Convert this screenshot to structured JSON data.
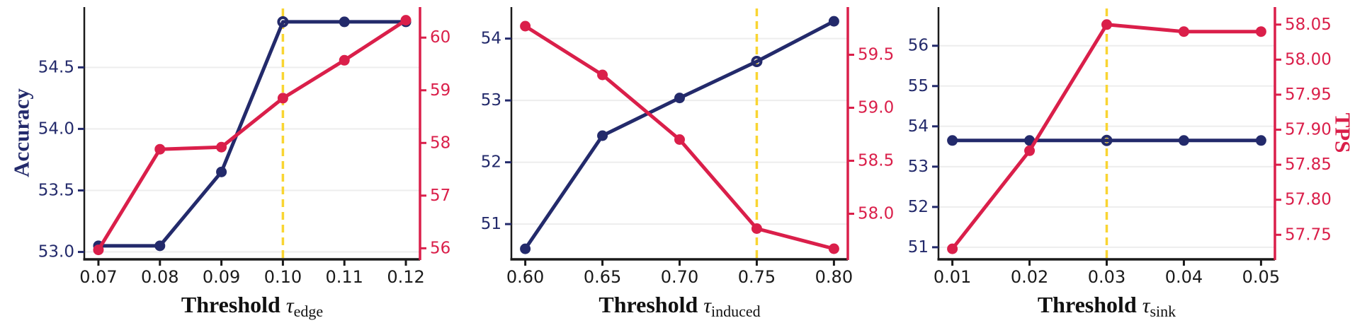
{
  "figure": {
    "background": "#ffffff",
    "description": "Three-panel threshold ablation line charts"
  },
  "colors": {
    "accuracy": "#232a6b",
    "tps": "#da1f4a",
    "highlight": "#f9d532",
    "grid": "#ededed",
    "spine_black": "#1a1a1a",
    "xtick_text": "#1a1a1a"
  },
  "labels": {
    "left_axis_label": "Accuracy",
    "right_axis_label": "TPS",
    "xlabel_word": "Threshold",
    "tau_symbol": "τ"
  },
  "chart_data": [
    {
      "type": "line",
      "xlabel": "Threshold τ_edge",
      "xlabel_word": "Threshold",
      "tau_symbol": "τ",
      "xlabel_subscript": "edge",
      "x": [
        0.07,
        0.08,
        0.09,
        0.1,
        0.11,
        0.12
      ],
      "x_tick_labels": [
        "0.07",
        "0.08",
        "0.09",
        "0.10",
        "0.11",
        "0.12"
      ],
      "xlim": [
        0.0677,
        0.1223
      ],
      "highlight_x": 0.1,
      "left_axis": {
        "label": "Accuracy",
        "ticks": [
          53.0,
          53.5,
          54.0,
          54.5
        ],
        "tick_labels": [
          "53.0",
          "53.5",
          "54.0",
          "54.5"
        ],
        "lim": [
          52.94,
          54.99
        ]
      },
      "right_axis": {
        "label": "",
        "ticks": [
          56,
          57,
          58,
          59,
          60
        ],
        "tick_labels": [
          "56",
          "57",
          "58",
          "59",
          "60"
        ],
        "lim": [
          55.79,
          60.58
        ]
      },
      "series": [
        {
          "name": "Accuracy",
          "axis": "left",
          "values": [
            53.05,
            53.05,
            53.65,
            54.87,
            54.87,
            54.87
          ]
        },
        {
          "name": "TPS",
          "axis": "right",
          "values": [
            55.97,
            57.88,
            57.92,
            58.85,
            59.57,
            60.33
          ]
        }
      ]
    },
    {
      "type": "line",
      "xlabel": "Threshold τ_induced",
      "xlabel_word": "Threshold",
      "tau_symbol": "τ",
      "xlabel_subscript": "induced",
      "x": [
        0.6,
        0.65,
        0.7,
        0.75,
        0.8
      ],
      "x_tick_labels": [
        "0.60",
        "0.65",
        "0.70",
        "0.75",
        "0.80"
      ],
      "xlim": [
        0.591,
        0.809
      ],
      "highlight_x": 0.75,
      "left_axis": {
        "label": "",
        "ticks": [
          51,
          52,
          53,
          54
        ],
        "tick_labels": [
          "51",
          "52",
          "53",
          "54"
        ],
        "lim": [
          50.43,
          54.51
        ]
      },
      "right_axis": {
        "label": "",
        "ticks": [
          58.0,
          58.5,
          59.0,
          59.5
        ],
        "tick_labels": [
          "58.0",
          "58.5",
          "59.0",
          "59.5"
        ],
        "lim": [
          57.57,
          59.95
        ]
      },
      "series": [
        {
          "name": "Accuracy",
          "axis": "left",
          "values": [
            50.6,
            52.43,
            53.04,
            53.63,
            54.28
          ]
        },
        {
          "name": "TPS",
          "axis": "right",
          "values": [
            59.77,
            59.31,
            58.7,
            57.86,
            57.67
          ]
        }
      ]
    },
    {
      "type": "line",
      "xlabel": "Threshold τ_sink",
      "xlabel_word": "Threshold",
      "tau_symbol": "τ",
      "xlabel_subscript": "sink",
      "x": [
        0.01,
        0.02,
        0.03,
        0.04,
        0.05
      ],
      "x_tick_labels": [
        "0.01",
        "0.02",
        "0.03",
        "0.04",
        "0.05"
      ],
      "xlim": [
        0.0082,
        0.0518
      ],
      "highlight_x": 0.03,
      "left_axis": {
        "label": "",
        "ticks": [
          51,
          52,
          53,
          54,
          55,
          56
        ],
        "tick_labels": [
          "51",
          "52",
          "53",
          "54",
          "55",
          "56"
        ],
        "lim": [
          50.7,
          56.96
        ]
      },
      "right_axis": {
        "label": "TPS",
        "ticks": [
          57.75,
          57.8,
          57.85,
          57.9,
          57.95,
          58.0,
          58.05
        ],
        "tick_labels": [
          "57.75",
          "57.80",
          "57.85",
          "57.90",
          "57.95",
          "58.00",
          "58.05"
        ],
        "lim": [
          57.715,
          58.075
        ]
      },
      "series": [
        {
          "name": "Accuracy",
          "axis": "left",
          "values": [
            53.65,
            53.65,
            53.65,
            53.65,
            53.65
          ]
        },
        {
          "name": "TPS",
          "axis": "right",
          "values": [
            57.73,
            57.87,
            58.05,
            58.04,
            58.04
          ]
        }
      ]
    }
  ]
}
